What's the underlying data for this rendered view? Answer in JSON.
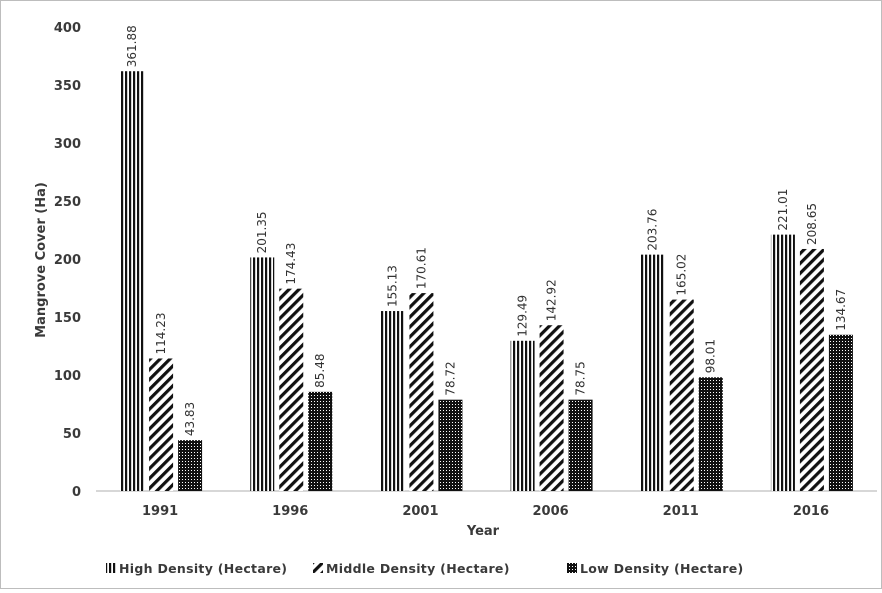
{
  "chart_data": {
    "type": "bar",
    "title": "",
    "xlabel": "Year",
    "ylabel": "Mangrove Cover (Ha)",
    "ylim": [
      0,
      400
    ],
    "yticks": [
      0,
      50,
      100,
      150,
      200,
      250,
      300,
      350,
      400
    ],
    "grid": false,
    "legend_position": "bottom",
    "categories": [
      "1991",
      "1996",
      "2001",
      "2006",
      "2011",
      "2016"
    ],
    "series": [
      {
        "name": "High Density (Hectare)",
        "pattern": "vertical-stripes",
        "values": [
          361.88,
          201.35,
          155.13,
          129.49,
          203.76,
          221.01
        ],
        "labels": [
          "361.88",
          "201.35",
          "155.13",
          "129.49",
          "203.76",
          "221.01"
        ]
      },
      {
        "name": "Middle Density (Hectare)",
        "pattern": "diagonal-stripes",
        "values": [
          114.23,
          174.43,
          170.61,
          142.92,
          165.02,
          208.65
        ],
        "labels": [
          "114.23",
          "174.43",
          "170.61",
          "142.92",
          "165.02",
          "208.65"
        ]
      },
      {
        "name": "Low Density (Hectare)",
        "pattern": "dots",
        "values": [
          43.83,
          85.48,
          78.72,
          78.75,
          98.01,
          134.67
        ],
        "labels": [
          "43.83",
          "85.48",
          "78.72",
          "78.75",
          "98.01",
          "134.67"
        ]
      }
    ],
    "colors": {
      "ink": "#111111",
      "axis": "#bfbfbf",
      "text": "#3a3a3a"
    }
  }
}
